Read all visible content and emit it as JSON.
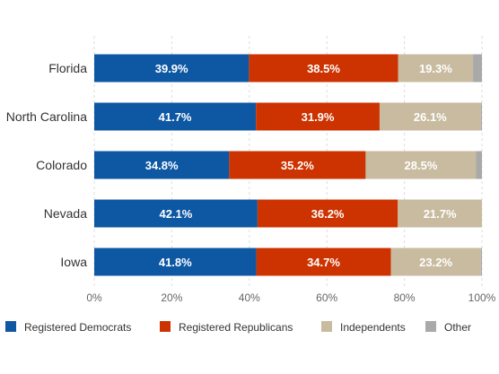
{
  "chart_data": {
    "type": "bar",
    "orientation": "horizontal",
    "stacked": true,
    "categories": [
      "Florida",
      "North Carolina",
      "Colorado",
      "Nevada",
      "Iowa"
    ],
    "series": [
      {
        "name": "Registered Democrats",
        "color": "#0d57a3",
        "values": [
          39.9,
          41.7,
          34.8,
          42.1,
          41.8
        ]
      },
      {
        "name": "Registered Republicans",
        "color": "#cc3300",
        "values": [
          38.5,
          31.9,
          35.2,
          36.2,
          34.7
        ]
      },
      {
        "name": "Independents",
        "color": "#c8bb9f",
        "values": [
          19.3,
          26.1,
          28.5,
          21.7,
          23.2
        ]
      },
      {
        "name": "Other",
        "color": "#a9a9a9",
        "values": [
          2.3,
          0.3,
          1.5,
          0,
          0.3
        ]
      }
    ],
    "data_labels": [
      [
        "39.9%",
        "38.5%",
        "19.3%",
        ""
      ],
      [
        "41.7%",
        "31.9%",
        "26.1%",
        ""
      ],
      [
        "34.8%",
        "35.2%",
        "28.5%",
        ""
      ],
      [
        "42.1%",
        "36.2%",
        "21.7%",
        ""
      ],
      [
        "41.8%",
        "34.7%",
        "23.2%",
        ""
      ]
    ],
    "x_ticks": [
      "0%",
      "20%",
      "40%",
      "60%",
      "80%",
      "100%"
    ],
    "xlim": [
      0,
      100
    ],
    "grid": true,
    "legend_position": "bottom",
    "title": "",
    "xlabel": "",
    "ylabel": ""
  }
}
